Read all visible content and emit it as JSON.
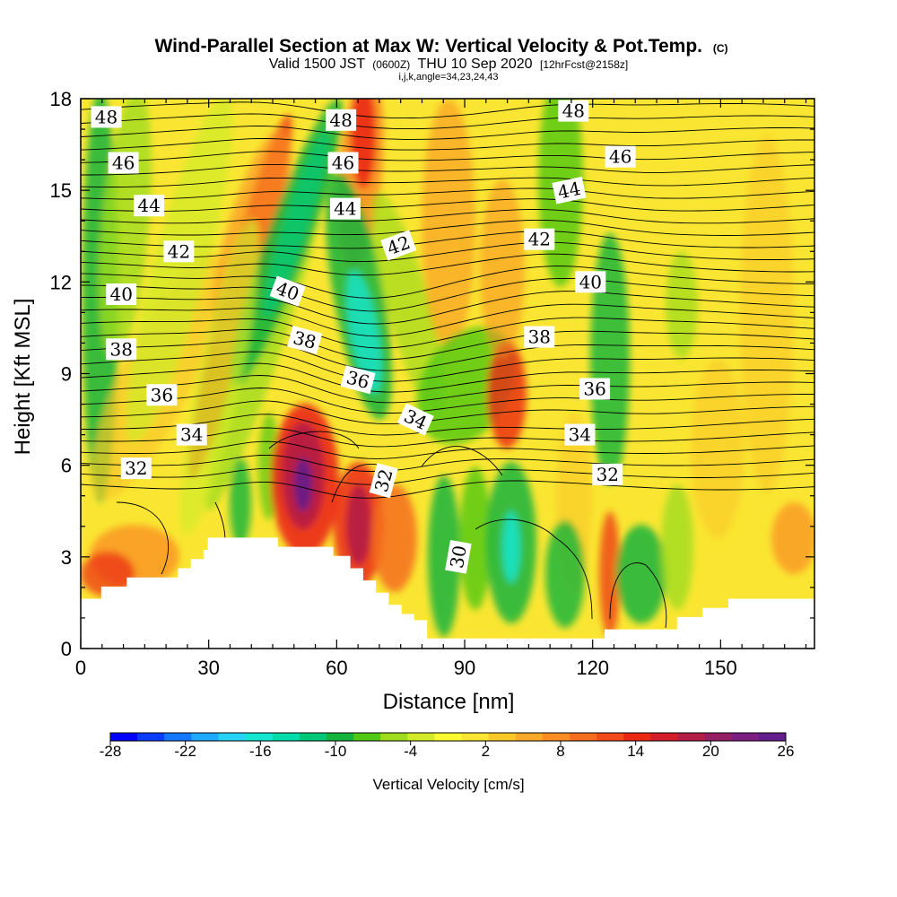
{
  "chart_data": {
    "type": "heatmap",
    "title": "Wind-Parallel Section at Max W: Vertical Velocity & Pot.Temp.",
    "title_suffix": "(C)",
    "subtitle_parts": [
      "Valid 1500 JST",
      "(0600Z)",
      "THU 10 Sep 2020",
      "[12hrFcst@2158z]"
    ],
    "subsubtitle": "i,j,k,angle=34,23,24,43",
    "xlabel": "Distance [nm]",
    "ylabel": "Height [Kft MSL]",
    "xlim": [
      0,
      172
    ],
    "ylim": [
      0,
      18
    ],
    "x_ticks": [
      0,
      30,
      60,
      90,
      120,
      150
    ],
    "y_ticks": [
      0,
      3,
      6,
      9,
      12,
      15,
      18
    ],
    "colorbar": {
      "label": "Vertical Velocity [cm/s]",
      "tick_labels": [
        "-28",
        "-22",
        "-16",
        "-10",
        "-4",
        "2",
        "8",
        "14",
        "20",
        "26"
      ],
      "range": [
        -28,
        26
      ],
      "colors": [
        "#0000ff",
        "#0a3cff",
        "#1478ff",
        "#1eaaff",
        "#28d2f5",
        "#14e6d2",
        "#00dcaa",
        "#00c878",
        "#14b43c",
        "#50c814",
        "#a0dc1e",
        "#d2eb28",
        "#fafa32",
        "#fae632",
        "#fac828",
        "#faaa28",
        "#fa8c23",
        "#f56e1e",
        "#f04b19",
        "#eb2814",
        "#d21e28",
        "#b41e46",
        "#961e64",
        "#7d1e82",
        "#641e8c"
      ]
    },
    "isentrope_labels": [
      {
        "text": "48",
        "x": 6,
        "y": 17.4,
        "angle": 0
      },
      {
        "text": "46",
        "x": 10,
        "y": 15.9,
        "angle": 0
      },
      {
        "text": "44",
        "x": 16,
        "y": 14.5,
        "angle": 0
      },
      {
        "text": "42",
        "x": 23,
        "y": 13.0,
        "angle": 0
      },
      {
        "text": "40",
        "x": 9.5,
        "y": 11.6,
        "angle": 0
      },
      {
        "text": "38",
        "x": 9.5,
        "y": 9.8,
        "angle": 0
      },
      {
        "text": "36",
        "x": 19,
        "y": 8.3,
        "angle": 0
      },
      {
        "text": "34",
        "x": 26,
        "y": 7.0,
        "angle": 0
      },
      {
        "text": "32",
        "x": 13,
        "y": 5.9,
        "angle": 0
      },
      {
        "text": "48",
        "x": 61,
        "y": 17.3,
        "angle": 0
      },
      {
        "text": "46",
        "x": 61.5,
        "y": 15.9,
        "angle": 0
      },
      {
        "text": "44",
        "x": 62,
        "y": 14.4,
        "angle": 0
      },
      {
        "text": "42",
        "x": 74.5,
        "y": 13.2,
        "angle": -20
      },
      {
        "text": "40",
        "x": 48.5,
        "y": 11.7,
        "angle": 20
      },
      {
        "text": "38",
        "x": 52.5,
        "y": 10.1,
        "angle": 15
      },
      {
        "text": "36",
        "x": 65,
        "y": 8.8,
        "angle": 15
      },
      {
        "text": "34",
        "x": 78.5,
        "y": 7.5,
        "angle": 25
      },
      {
        "text": "32",
        "x": 71,
        "y": 5.5,
        "angle": -75
      },
      {
        "text": "30",
        "x": 88.5,
        "y": 3.0,
        "angle": -80
      },
      {
        "text": "48",
        "x": 115.5,
        "y": 17.6,
        "angle": 0
      },
      {
        "text": "46",
        "x": 126.5,
        "y": 16.1,
        "angle": 0
      },
      {
        "text": "44",
        "x": 114.5,
        "y": 15.0,
        "angle": -12
      },
      {
        "text": "42",
        "x": 107.5,
        "y": 13.4,
        "angle": 0
      },
      {
        "text": "40",
        "x": 119.5,
        "y": 12.0,
        "angle": 0
      },
      {
        "text": "38",
        "x": 107.5,
        "y": 10.2,
        "angle": 0
      },
      {
        "text": "36",
        "x": 120.5,
        "y": 8.5,
        "angle": 0
      },
      {
        "text": "34",
        "x": 117,
        "y": 7.0,
        "angle": 0
      },
      {
        "text": "32",
        "x": 123.5,
        "y": 5.7,
        "angle": 0
      }
    ]
  }
}
